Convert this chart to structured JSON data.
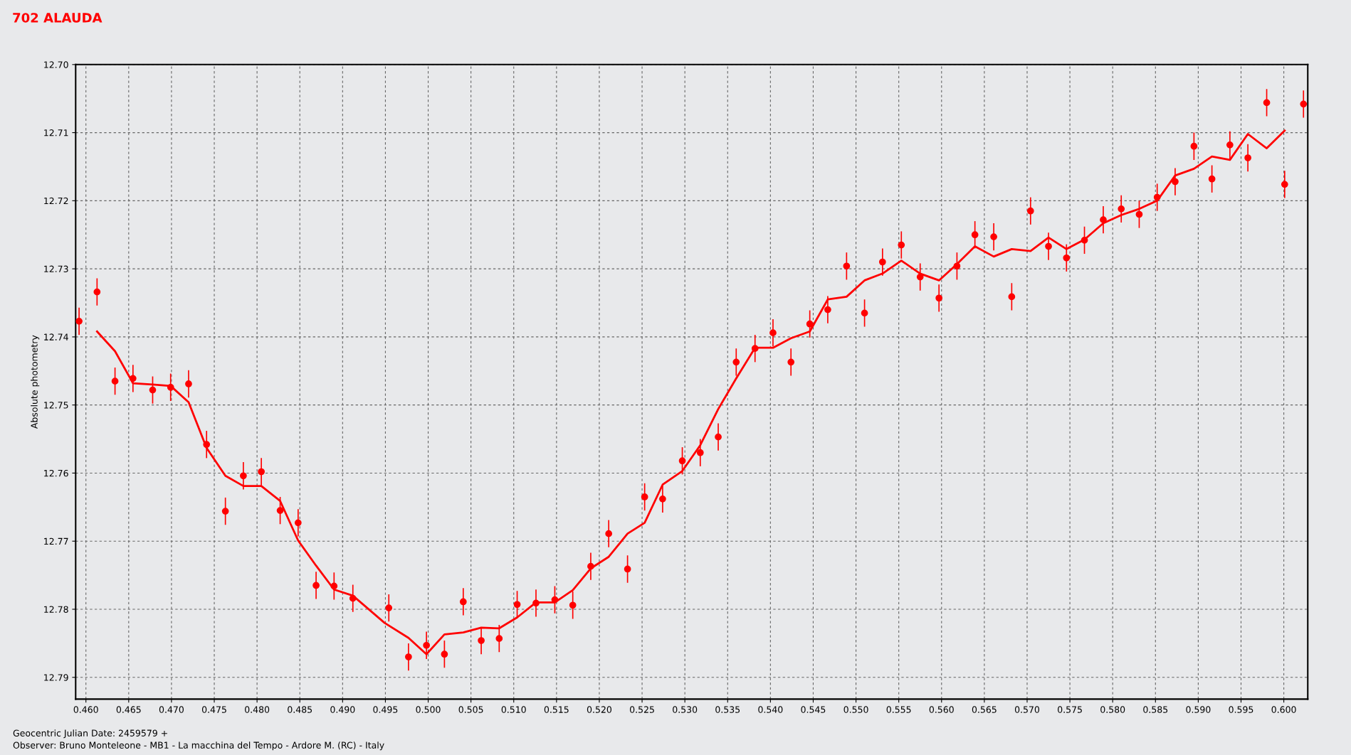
{
  "chart_data": {
    "type": "scatter",
    "title": "702 ALAUDA",
    "ylabel": "Absolute photometry",
    "annotations": [
      "Geocentric Julian Date: 2459579 +",
      "Observer: Bruno Monteleone - MB1 - La macchina del Tempo - Ardore M. (RC) - Italy"
    ],
    "xlim": [
      0.4588,
      0.6028
    ],
    "ylim": [
      12.7932,
      12.7
    ],
    "xticks": [
      {
        "value": 0.46,
        "label": "0.460"
      },
      0.465,
      {
        "value": 0.47,
        "label": "0.470"
      },
      0.475,
      {
        "value": 0.48,
        "label": "0.480"
      },
      0.485,
      {
        "value": 0.49,
        "label": "0.490"
      },
      0.495,
      {
        "value": 0.5,
        "label": "0.500"
      },
      0.505,
      {
        "value": 0.51,
        "label": "0.510"
      },
      0.515,
      {
        "value": 0.52,
        "label": "0.520"
      },
      0.525,
      {
        "value": 0.53,
        "label": "0.530"
      },
      0.535,
      {
        "value": 0.54,
        "label": "0.540"
      },
      0.545,
      {
        "value": 0.55,
        "label": "0.550"
      },
      0.555,
      {
        "value": 0.56,
        "label": "0.560"
      },
      0.565,
      {
        "value": 0.57,
        "label": "0.570"
      },
      0.575,
      {
        "value": 0.58,
        "label": "0.580"
      },
      0.585,
      {
        "value": 0.59,
        "label": "0.590"
      },
      0.595,
      {
        "value": 0.6,
        "label": "0.600"
      }
    ],
    "yticks": [
      {
        "value": 12.7,
        "label": "12.70"
      },
      12.71,
      12.72,
      12.73,
      12.74,
      12.75,
      12.76,
      12.77,
      12.78,
      12.79
    ],
    "grid": true,
    "legend": false,
    "series": [
      {
        "color": "#ff0000",
        "marker": "circle",
        "x": [
          0.4592,
          0.4613,
          0.4634,
          0.4655,
          0.4678,
          0.4699,
          0.472,
          0.4741,
          0.4763,
          0.4784,
          0.4805,
          0.4827,
          0.4848,
          0.4869,
          0.489,
          0.4912,
          0.4954,
          0.4977,
          0.4998,
          0.5019,
          0.5041,
          0.5062,
          0.5083,
          0.5104,
          0.5126,
          0.5148,
          0.5169,
          0.519,
          0.5211,
          0.5233,
          0.5253,
          0.5274,
          0.5297,
          0.5318,
          0.5339,
          0.536,
          0.5382,
          0.5403,
          0.5424,
          0.5446,
          0.5467,
          0.5489,
          0.551,
          0.5531,
          0.5553,
          0.5575,
          0.5597,
          0.5618,
          0.5639,
          0.5661,
          0.5682,
          0.5704,
          0.5725,
          0.5746,
          0.5767,
          0.5789,
          0.581,
          0.5831,
          0.5852,
          0.5873,
          0.5895,
          0.5916,
          0.5937,
          0.5958,
          0.598,
          0.6001,
          0.6023
        ],
        "values": [
          12.7377,
          12.7334,
          12.7465,
          12.7461,
          12.7478,
          12.7474,
          12.7469,
          12.7558,
          12.7656,
          12.7604,
          12.7598,
          12.7655,
          12.7673,
          12.7765,
          12.7766,
          12.7784,
          12.7798,
          12.787,
          12.7853,
          12.7866,
          12.7789,
          12.7846,
          12.7843,
          12.7793,
          12.7791,
          12.7786,
          12.7794,
          12.7737,
          12.7689,
          12.7741,
          12.7635,
          12.7638,
          12.7582,
          12.757,
          12.7547,
          12.7437,
          12.7417,
          12.7394,
          12.7437,
          12.7381,
          12.736,
          12.7296,
          12.7365,
          12.729,
          12.7265,
          12.7312,
          12.7343,
          12.7296,
          12.725,
          12.7253,
          12.7341,
          12.7215,
          12.7267,
          12.7284,
          12.7258,
          12.7228,
          12.7212,
          12.722,
          12.7195,
          12.7172,
          12.712,
          12.7168,
          12.7118,
          12.7137,
          12.7056,
          12.7176,
          12.7058
        ],
        "errors": [
          0.002,
          0.002,
          0.002,
          0.002,
          0.002,
          0.002,
          0.002,
          0.002,
          0.002,
          0.002,
          0.002,
          0.002,
          0.002,
          0.002,
          0.002,
          0.002,
          0.002,
          0.002,
          0.002,
          0.002,
          0.002,
          0.002,
          0.002,
          0.002,
          0.002,
          0.002,
          0.002,
          0.002,
          0.002,
          0.002,
          0.002,
          0.002,
          0.002,
          0.002,
          0.002,
          0.002,
          0.002,
          0.002,
          0.002,
          0.002,
          0.002,
          0.002,
          0.002,
          0.002,
          0.002,
          0.002,
          0.002,
          0.002,
          0.002,
          0.002,
          0.002,
          0.002,
          0.002,
          0.002,
          0.002,
          0.002,
          0.002,
          0.002,
          0.002,
          0.002,
          0.002,
          0.002,
          0.002,
          0.002,
          0.002,
          0.002,
          0.002
        ]
      },
      {
        "type": "line",
        "color": "#ff0000",
        "marker": "none",
        "line_style": "solid",
        "x": [
          0.4613,
          0.4634,
          0.4655,
          0.4678,
          0.4699,
          0.472,
          0.4741,
          0.4763,
          0.4784,
          0.4805,
          0.4827,
          0.4848,
          0.4869,
          0.489,
          0.4912,
          0.4949,
          0.4977,
          0.4998,
          0.5019,
          0.5041,
          0.5062,
          0.5083,
          0.5104,
          0.5126,
          0.5148,
          0.5169,
          0.519,
          0.5211,
          0.5233,
          0.5253,
          0.5274,
          0.5297,
          0.5318,
          0.5339,
          0.536,
          0.5382,
          0.5403,
          0.5424,
          0.5446,
          0.5467,
          0.5489,
          0.551,
          0.5531,
          0.5553,
          0.5575,
          0.5597,
          0.5618,
          0.5639,
          0.5661,
          0.5682,
          0.5704,
          0.5725,
          0.5746,
          0.5767,
          0.5789,
          0.581,
          0.5831,
          0.5852,
          0.5873,
          0.5895,
          0.5916,
          0.5937,
          0.5958,
          0.598,
          0.6001
        ],
        "values": [
          12.7392,
          12.7421,
          12.7468,
          12.747,
          12.7472,
          12.7496,
          12.7563,
          12.7604,
          12.7619,
          12.7619,
          12.7641,
          12.7699,
          12.7736,
          12.7771,
          12.778,
          12.782,
          12.7842,
          12.7866,
          12.7837,
          12.7834,
          12.7827,
          12.7828,
          12.7812,
          12.779,
          12.779,
          12.7772,
          12.774,
          12.7723,
          12.7689,
          12.7673,
          12.7617,
          12.7597,
          12.7559,
          12.7506,
          12.7461,
          12.7416,
          12.7416,
          12.7402,
          12.7392,
          12.7345,
          12.7341,
          12.7317,
          12.7307,
          12.7288,
          12.7307,
          12.7317,
          12.7293,
          12.7267,
          12.7282,
          12.7271,
          12.7274,
          12.7254,
          12.7271,
          12.7257,
          12.7233,
          12.7221,
          12.7212,
          12.72,
          12.7163,
          12.7153,
          12.7135,
          12.714,
          12.7102,
          12.7123,
          12.7097
        ]
      }
    ]
  }
}
